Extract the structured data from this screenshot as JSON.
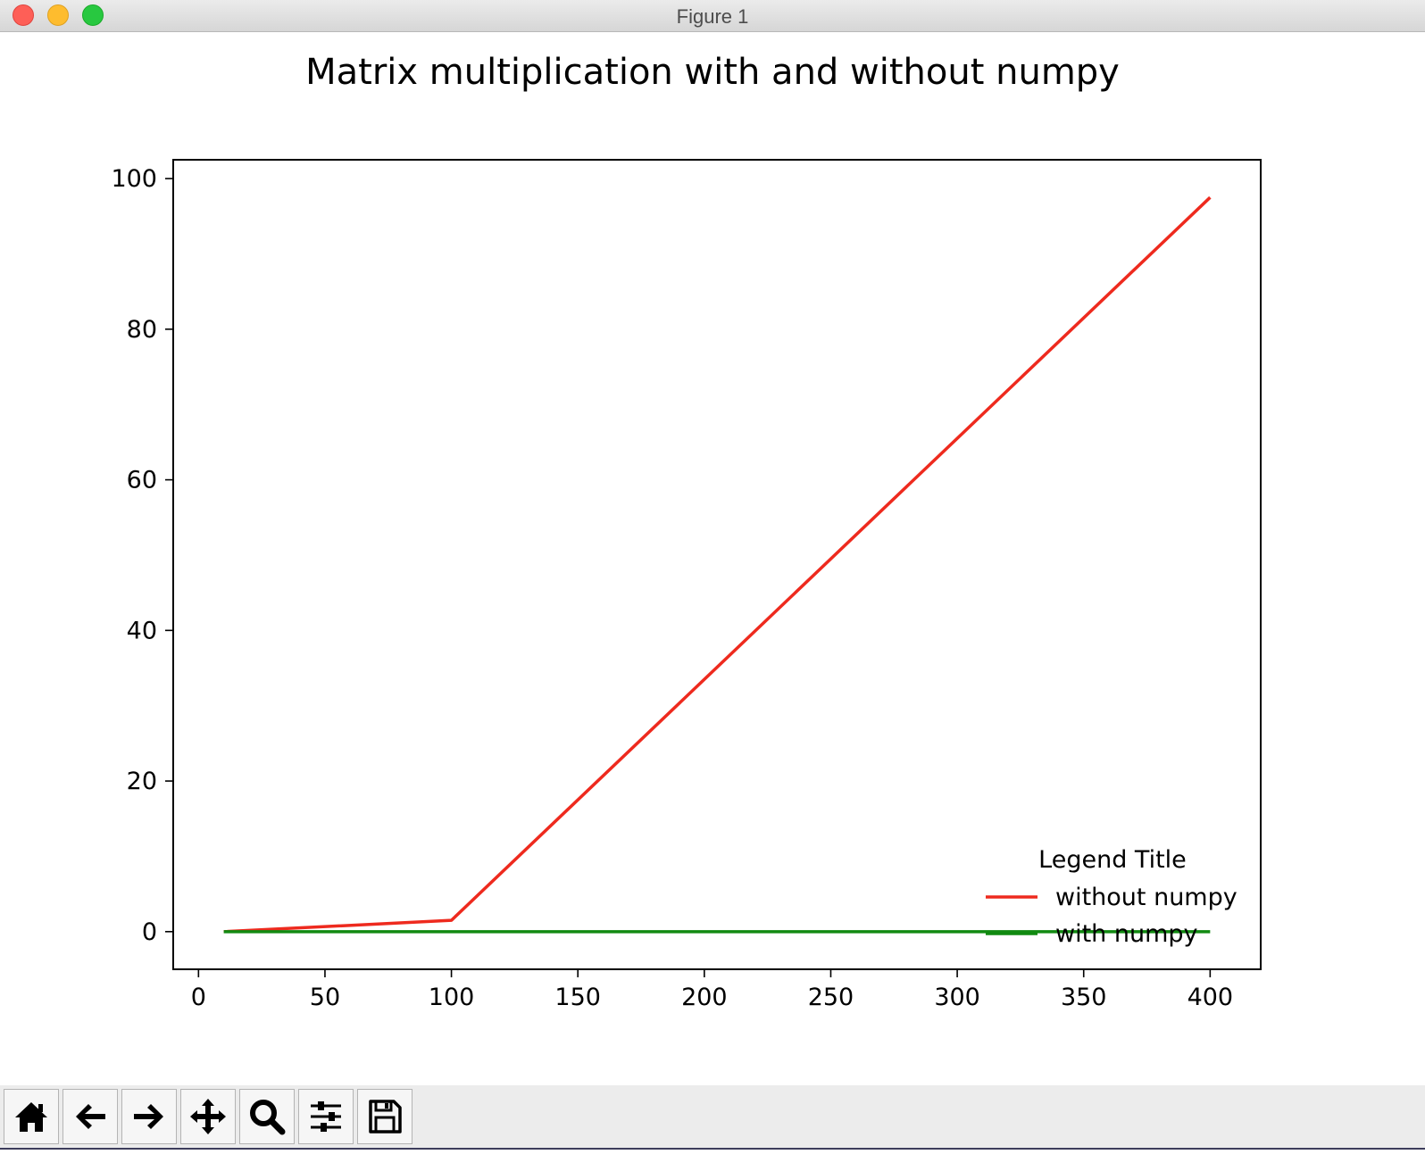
{
  "window": {
    "title": "Figure 1"
  },
  "colors": {
    "series_red": "#ee2a1e",
    "series_green": "#118a11"
  },
  "chart_data": {
    "type": "line",
    "title": "Matrix multiplication with and without numpy",
    "xlabel": "",
    "ylabel": "",
    "xlim": [
      -10,
      420
    ],
    "ylim": [
      -5,
      102.5
    ],
    "xticks": [
      0,
      50,
      100,
      150,
      200,
      250,
      300,
      350,
      400
    ],
    "yticks": [
      0,
      20,
      40,
      60,
      80,
      100
    ],
    "grid": false,
    "legend": {
      "title": "Legend Title",
      "placement": "lower-right",
      "frame": false
    },
    "series": [
      {
        "name": "without numpy",
        "color": "#ee2a1e",
        "x": [
          10,
          100,
          400
        ],
        "y": [
          0,
          1.5,
          97.5
        ]
      },
      {
        "name": "with numpy",
        "color": "#118a11",
        "x": [
          10,
          100,
          400
        ],
        "y": [
          0,
          0,
          0
        ]
      }
    ]
  },
  "toolbar": {
    "buttons": [
      {
        "name": "home",
        "icon": "home-icon"
      },
      {
        "name": "back",
        "icon": "arrow-left-icon"
      },
      {
        "name": "forward",
        "icon": "arrow-right-icon"
      },
      {
        "name": "pan",
        "icon": "move-icon"
      },
      {
        "name": "zoom",
        "icon": "magnifier-icon"
      },
      {
        "name": "configure-subplots",
        "icon": "sliders-icon"
      },
      {
        "name": "save",
        "icon": "floppy-icon"
      }
    ]
  }
}
